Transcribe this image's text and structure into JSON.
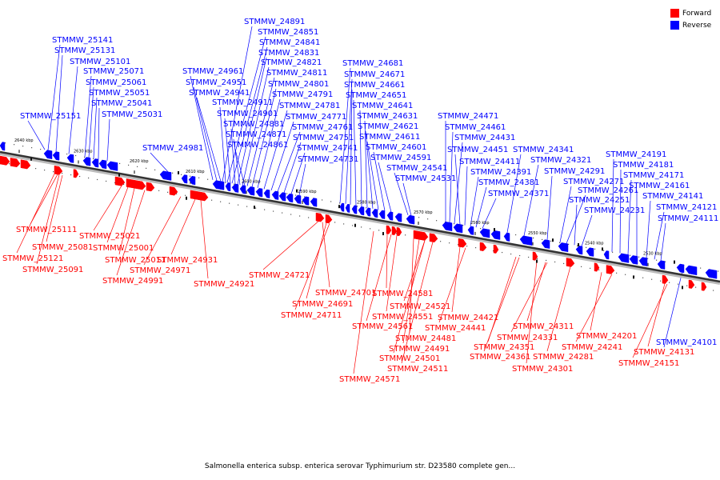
{
  "colors": {
    "forward": "#ff0000",
    "reverse": "#0000ff",
    "backbone": "#777777",
    "backbone_dark": "#333333"
  },
  "legend": {
    "forward_label": "Forward",
    "reverse_label": "Reverse"
  },
  "caption": "Salmonella enterica subsp. enterica serovar Typhimurium str. D23580 complete gen...",
  "ticks": [
    "2640 kbp",
    "2630 kbp",
    "2620 kbp",
    "2610 kbp",
    "2600 kbp",
    "2590 kbp",
    "2580 kbp",
    "2570 kbp",
    "2560 kbp",
    "2550 kbp",
    "2540 kbp",
    "2530 kbp"
  ],
  "reverse_genes": [
    "STMMW_25141",
    "STMMW_25131",
    "STMMW_25101",
    "STMMW_25071",
    "STMMW_25061",
    "STMMW_25051",
    "STMMW_25041",
    "STMMW_25031",
    "STMMW_25151",
    "STMMW_24891",
    "STMMW_24851",
    "STMMW_24841",
    "STMMW_24831",
    "STMMW_24821",
    "STMMW_24811",
    "STMMW_24801",
    "STMMW_24791",
    "STMMW_24781",
    "STMMW_24771",
    "STMMW_24761",
    "STMMW_24751",
    "STMMW_24741",
    "STMMW_24731",
    "STMMW_24961",
    "STMMW_24951",
    "STMMW_24941",
    "STMMW_24911",
    "STMMW_24901",
    "STMMW_24881",
    "STMMW_24871",
    "STMMW_24861",
    "STMMW_24981",
    "STMMW_24681",
    "STMMW_24671",
    "STMMW_24661",
    "STMMW_24651",
    "STMMW_24641",
    "STMMW_24631",
    "STMMW_24621",
    "STMMW_24611",
    "STMMW_24601",
    "STMMW_24591",
    "STMMW_24541",
    "STMMW_24531",
    "STMMW_24471",
    "STMMW_24461",
    "STMMW_24431",
    "STMMW_24451",
    "STMMW_24411",
    "STMMW_24391",
    "STMMW_24381",
    "STMMW_24371",
    "STMMW_24341",
    "STMMW_24321",
    "STMMW_24291",
    "STMMW_24271",
    "STMMW_24261",
    "STMMW_24251",
    "STMMW_24231",
    "STMMW_24191",
    "STMMW_24181",
    "STMMW_24171",
    "STMMW_24161",
    "STMMW_24141",
    "STMMW_24121",
    "STMMW_24111",
    "STMMW_24101"
  ],
  "forward_genes": [
    "STMMW_25111",
    "STMMW_25081",
    "STMMW_25121",
    "STMMW_25091",
    "STMMW_25021",
    "STMMW_25001",
    "STMMW_25011",
    "STMMW_24991",
    "STMMW_24931",
    "STMMW_24971",
    "STMMW_24921",
    "STMMW_24721",
    "STMMW_24701",
    "STMMW_24691",
    "STMMW_24711",
    "STMMW_24581",
    "STMMW_24521",
    "STMMW_24551",
    "STMMW_24561",
    "STMMW_24481",
    "STMMW_24491",
    "STMMW_24501",
    "STMMW_24511",
    "STMMW_24571",
    "STMMW_24421",
    "STMMW_24441",
    "STMMW_24311",
    "STMMW_24331",
    "STMMW_24351",
    "STMMW_24361",
    "STMMW_24281",
    "STMMW_24301",
    "STMMW_24201",
    "STMMW_24241",
    "STMMW_24131",
    "STMMW_24151"
  ]
}
